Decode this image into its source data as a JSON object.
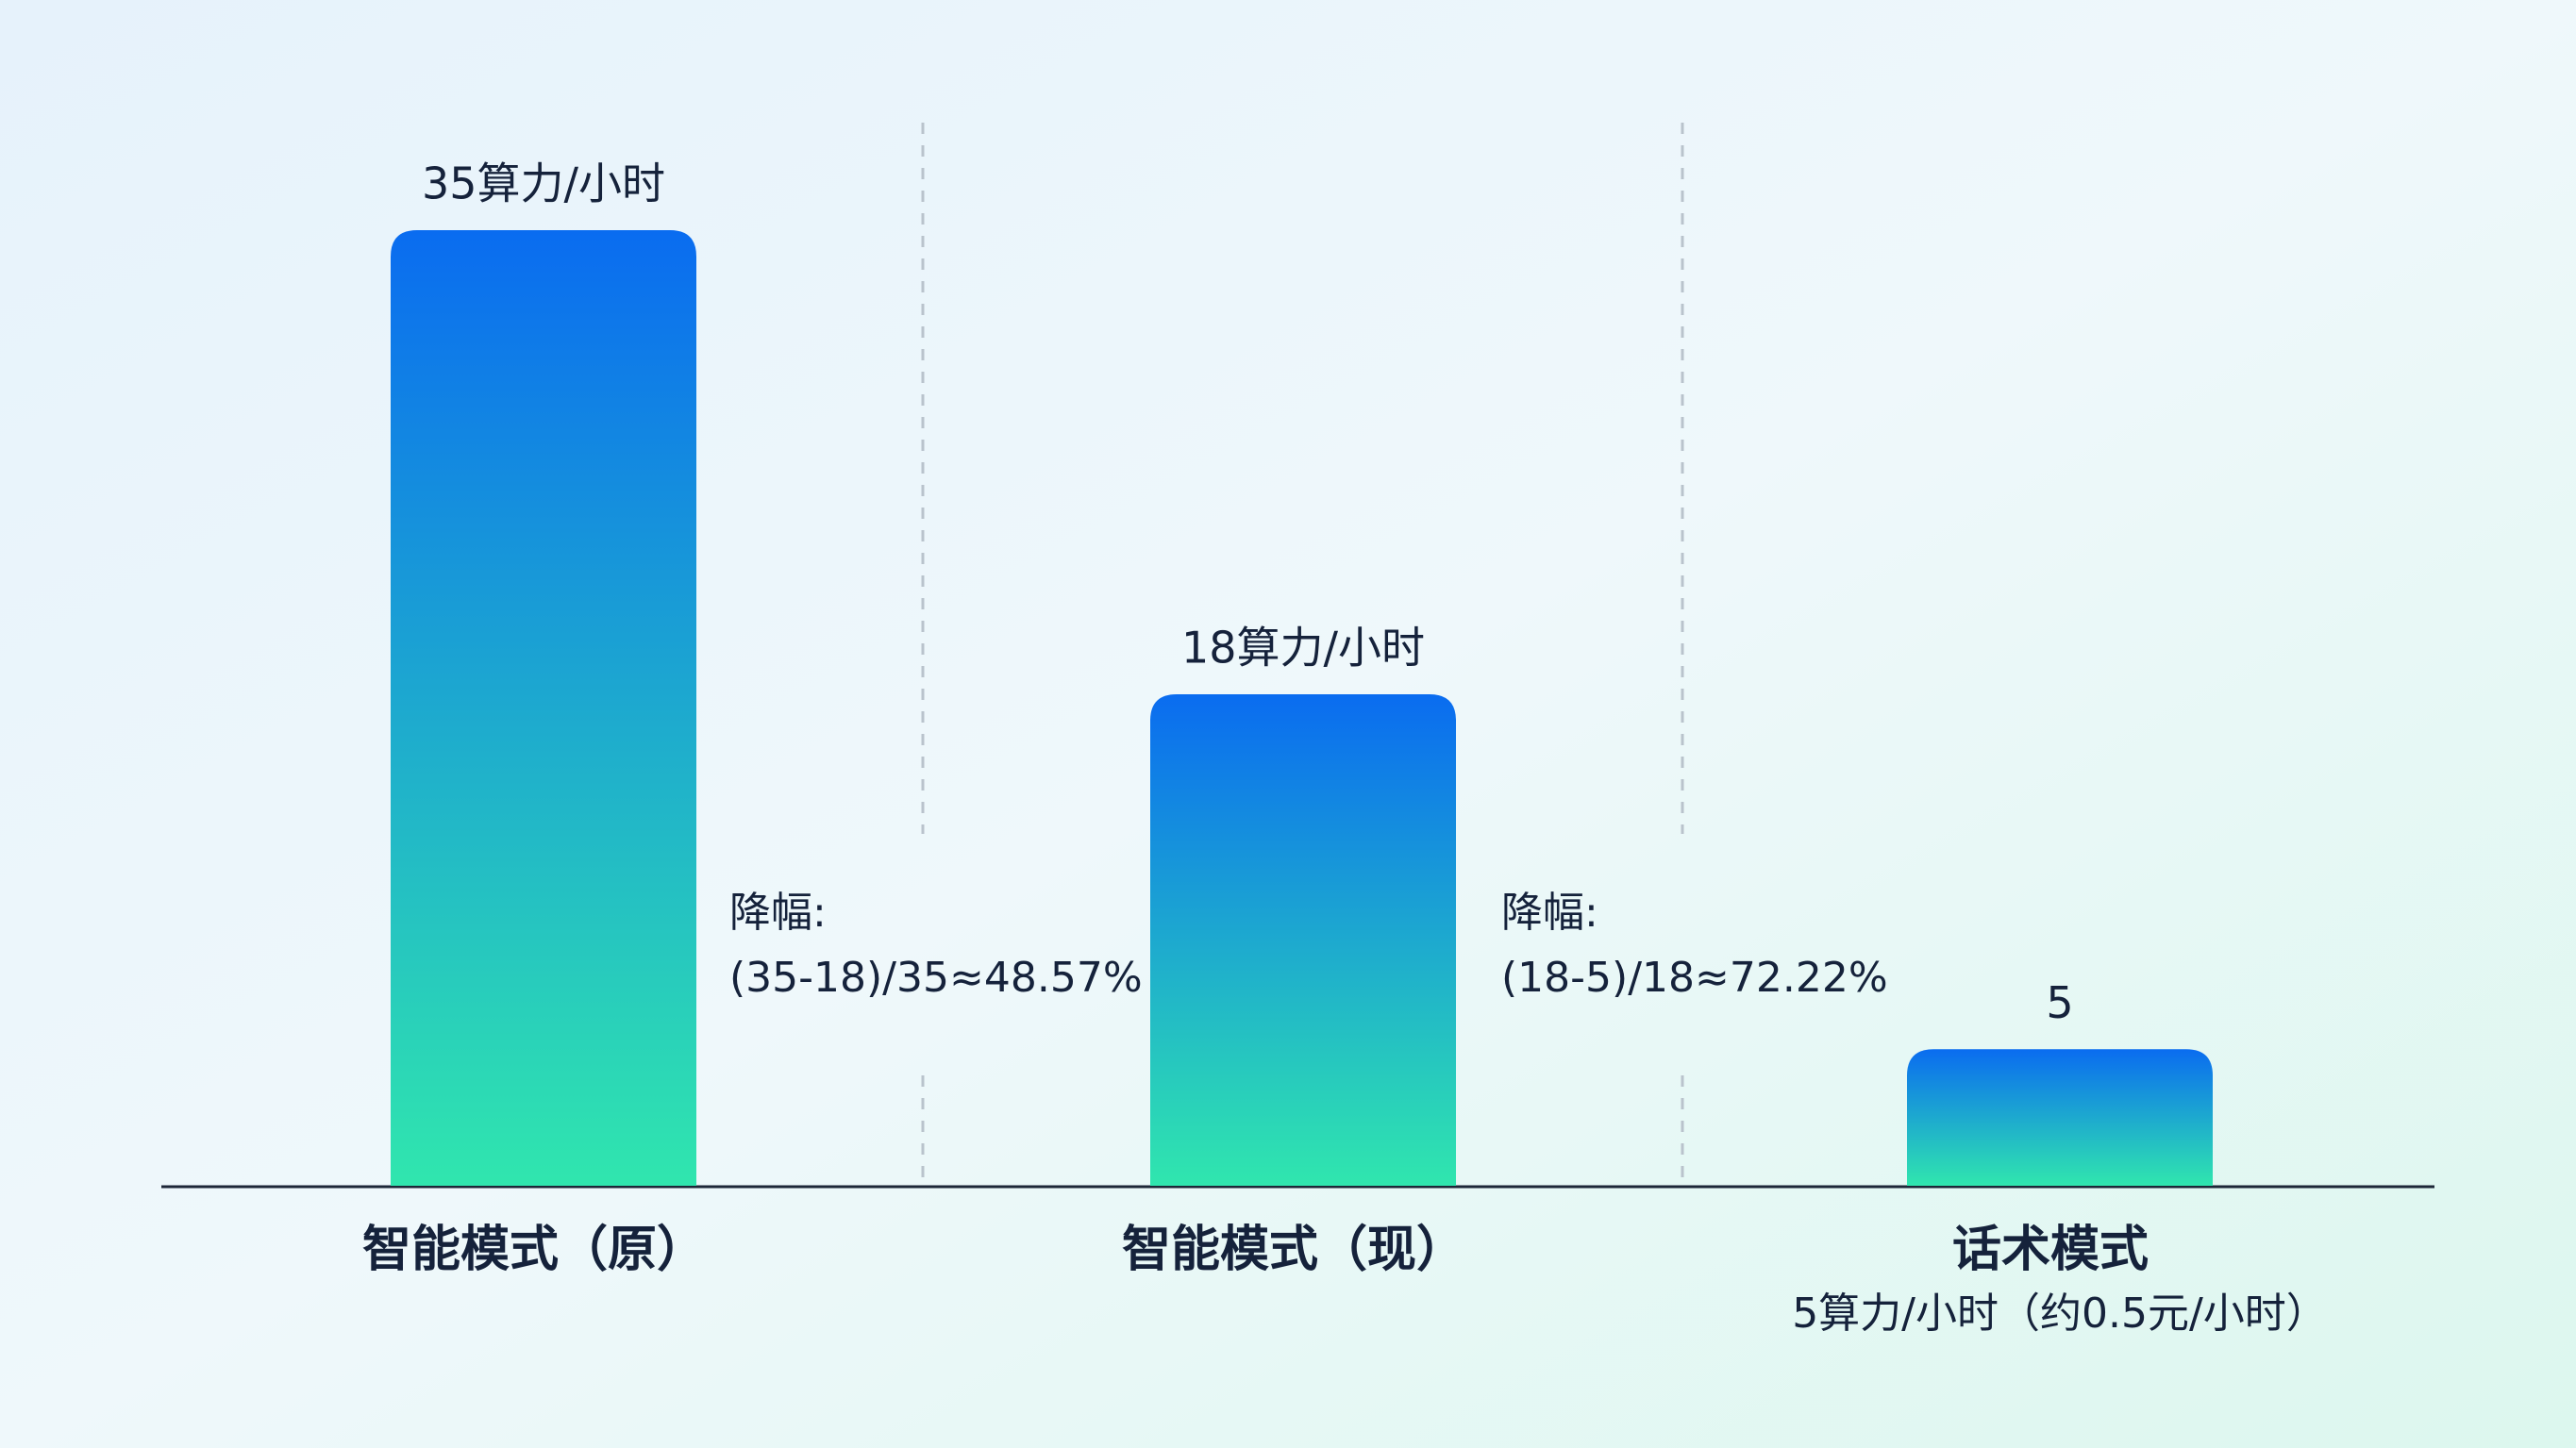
{
  "chart_data": {
    "type": "bar",
    "categories": [
      "智能模式（原）",
      "智能模式（现）",
      "话术模式"
    ],
    "values": [
      35,
      18,
      5
    ],
    "value_labels": [
      "35算力/小时",
      "18算力/小时",
      "5"
    ],
    "category_note": "5算力/小时（约0.5元/小时）",
    "annotations": [
      {
        "title": "降幅:",
        "text": "(35-18)/35≈48.57%"
      },
      {
        "title": "降幅:",
        "text": "(18-5)/18≈72.22%"
      }
    ],
    "gradient": [
      "#0a6cf0",
      "#30e6ae"
    ]
  }
}
